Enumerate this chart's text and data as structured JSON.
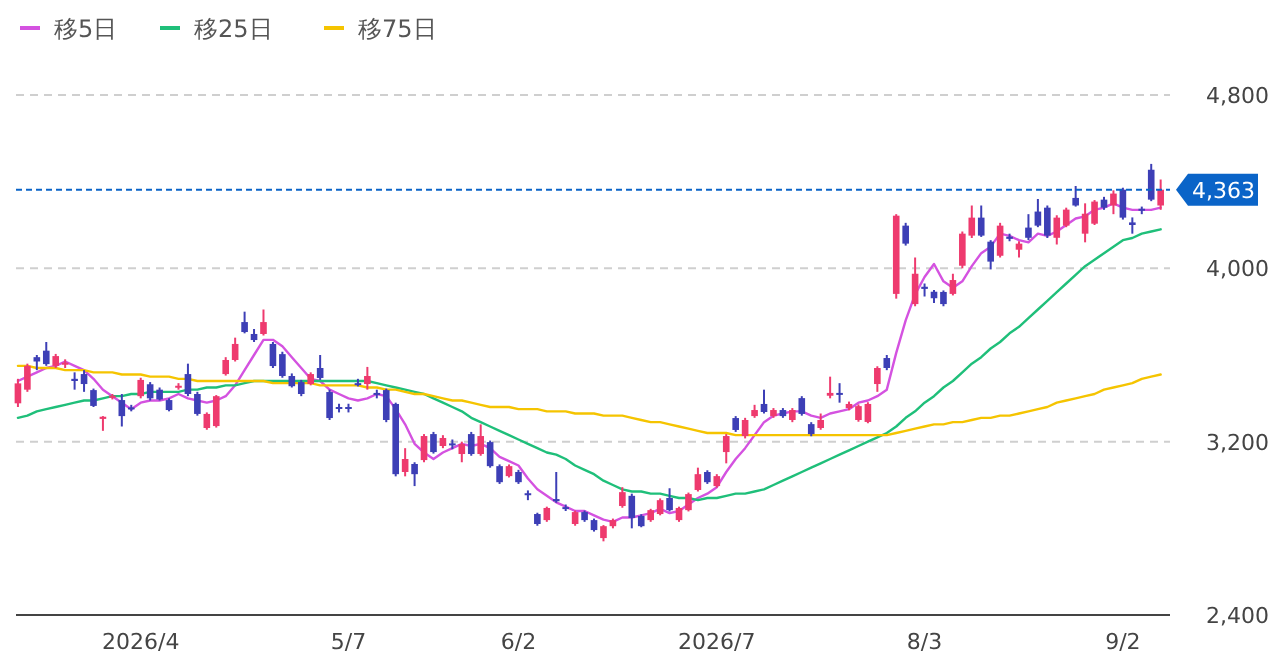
{
  "chart_data": {
    "type": "candlestick",
    "categories": [
      null,
      null,
      null,
      null,
      null,
      null,
      null,
      null,
      null,
      null,
      null,
      null,
      null,
      "2026/4",
      null,
      null,
      null,
      null,
      null,
      null,
      null,
      null,
      null,
      null,
      null,
      null,
      null,
      null,
      null,
      null,
      null,
      null,
      null,
      null,
      null,
      "5/7",
      null,
      null,
      null,
      null,
      null,
      null,
      null,
      null,
      null,
      null,
      null,
      null,
      null,
      null,
      null,
      null,
      null,
      "6/2",
      null,
      null,
      null,
      null,
      null,
      null,
      null,
      null,
      null,
      null,
      null,
      null,
      null,
      null,
      null,
      null,
      null,
      null,
      null,
      null,
      "2026/7",
      null,
      null,
      null,
      null,
      null,
      null,
      null,
      null,
      null,
      null,
      null,
      null,
      null,
      null,
      null,
      null,
      null,
      null,
      null,
      null,
      null,
      "8/3",
      null,
      null,
      null,
      null,
      null,
      null,
      null,
      null,
      null,
      null,
      null,
      null,
      null,
      null,
      null,
      null,
      null,
      null,
      null,
      null,
      "9/2",
      null,
      null,
      null,
      null
    ],
    "ohlc": [
      [
        3377,
        3490,
        3360,
        3469
      ],
      [
        3440,
        3560,
        3430,
        3550
      ],
      [
        3590,
        3600,
        3530,
        3570
      ],
      [
        3620,
        3660,
        3550,
        3558
      ],
      [
        3550,
        3605,
        3540,
        3595
      ],
      [
        3555,
        3580,
        3540,
        3565
      ],
      [
        3490,
        3520,
        3440,
        3480
      ],
      [
        3512,
        3530,
        3430,
        3466
      ],
      [
        3438,
        3445,
        3360,
        3365
      ],
      [
        3305,
        3318,
        3250,
        3315
      ],
      [
        3405,
        3420,
        3395,
        3412
      ],
      [
        3392,
        3420,
        3270,
        3318
      ],
      [
        3358,
        3370,
        3340,
        3352
      ],
      [
        3410,
        3495,
        3400,
        3485
      ],
      [
        3465,
        3475,
        3390,
        3400
      ],
      [
        3440,
        3450,
        3390,
        3395
      ],
      [
        3392,
        3400,
        3340,
        3346
      ],
      [
        3452,
        3470,
        3440,
        3458
      ],
      [
        3512,
        3560,
        3410,
        3420
      ],
      [
        3420,
        3430,
        3320,
        3328
      ],
      [
        3263,
        3335,
        3255,
        3328
      ],
      [
        3272,
        3415,
        3265,
        3410
      ],
      [
        3512,
        3590,
        3505,
        3577
      ],
      [
        3577,
        3680,
        3570,
        3651
      ],
      [
        3752,
        3800,
        3700,
        3706
      ],
      [
        3697,
        3720,
        3660,
        3669
      ],
      [
        3697,
        3810,
        3690,
        3752
      ],
      [
        3651,
        3660,
        3540,
        3549
      ],
      [
        3604,
        3615,
        3495,
        3503
      ],
      [
        3503,
        3515,
        3450,
        3456
      ],
      [
        3475,
        3485,
        3410,
        3420
      ],
      [
        3466,
        3520,
        3460,
        3512
      ],
      [
        3540,
        3600,
        3485,
        3494
      ],
      [
        3429,
        3440,
        3300,
        3309
      ],
      [
        3360,
        3375,
        3335,
        3352
      ],
      [
        3360,
        3375,
        3335,
        3352
      ],
      [
        3470,
        3490,
        3455,
        3463
      ],
      [
        3466,
        3545,
        3440,
        3503
      ],
      [
        3425,
        3440,
        3400,
        3418
      ],
      [
        3438,
        3445,
        3290,
        3300
      ],
      [
        3374,
        3380,
        3040,
        3050
      ],
      [
        3060,
        3170,
        3040,
        3120
      ],
      [
        3097,
        3105,
        2995,
        3050
      ],
      [
        3115,
        3235,
        3105,
        3226
      ],
      [
        3235,
        3245,
        3145,
        3152
      ],
      [
        3180,
        3230,
        3170,
        3217
      ],
      [
        3192,
        3210,
        3165,
        3186
      ],
      [
        3143,
        3200,
        3105,
        3189
      ],
      [
        3235,
        3245,
        3135,
        3143
      ],
      [
        3143,
        3280,
        3135,
        3226
      ],
      [
        3198,
        3205,
        3080,
        3087
      ],
      [
        3087,
        3095,
        3005,
        3013
      ],
      [
        3041,
        3095,
        3035,
        3087
      ],
      [
        3060,
        3070,
        3005,
        3013
      ],
      [
        2962,
        2975,
        2930,
        2955
      ],
      [
        2866,
        2872,
        2812,
        2820
      ],
      [
        2838,
        2900,
        2830,
        2894
      ],
      [
        2935,
        3060,
        2918,
        2925
      ],
      [
        2898,
        2910,
        2880,
        2890
      ],
      [
        2820,
        2882,
        2812,
        2875
      ],
      [
        2875,
        2882,
        2830,
        2838
      ],
      [
        2838,
        2845,
        2785,
        2792
      ],
      [
        2755,
        2815,
        2740,
        2810
      ],
      [
        2810,
        2845,
        2800,
        2838
      ],
      [
        2903,
        2990,
        2895,
        2967
      ],
      [
        2950,
        2960,
        2800,
        2848
      ],
      [
        2857,
        2865,
        2805,
        2810
      ],
      [
        2838,
        2890,
        2830,
        2884
      ],
      [
        2866,
        2938,
        2860,
        2930
      ],
      [
        2940,
        2985,
        2878,
        2884
      ],
      [
        2838,
        2900,
        2830,
        2894
      ],
      [
        2884,
        2965,
        2878,
        2958
      ],
      [
        2977,
        3080,
        2970,
        3050
      ],
      [
        3060,
        3068,
        3005,
        3013
      ],
      [
        2995,
        3050,
        2988,
        3041
      ],
      [
        3152,
        3235,
        3100,
        3226
      ],
      [
        3309,
        3318,
        3245,
        3254
      ],
      [
        3226,
        3310,
        3215,
        3300
      ],
      [
        3318,
        3370,
        3310,
        3346
      ],
      [
        3374,
        3440,
        3330,
        3337
      ],
      [
        3318,
        3355,
        3310,
        3346
      ],
      [
        3346,
        3355,
        3310,
        3318
      ],
      [
        3300,
        3355,
        3290,
        3346
      ],
      [
        3401,
        3410,
        3320,
        3328
      ],
      [
        3281,
        3290,
        3225,
        3235
      ],
      [
        3263,
        3330,
        3255,
        3300
      ],
      [
        3412,
        3500,
        3400,
        3425
      ],
      [
        3425,
        3470,
        3380,
        3418
      ],
      [
        3355,
        3385,
        3345,
        3374
      ],
      [
        3300,
        3372,
        3292,
        3364
      ],
      [
        3291,
        3382,
        3285,
        3374
      ],
      [
        3466,
        3548,
        3430,
        3540
      ],
      [
        3586,
        3600,
        3530,
        3540
      ],
      [
        3882,
        4250,
        3860,
        4243
      ],
      [
        4197,
        4210,
        4105,
        4114
      ],
      [
        3835,
        4050,
        3825,
        3975
      ],
      [
        3915,
        3930,
        3870,
        3905
      ],
      [
        3892,
        3900,
        3840,
        3862
      ],
      [
        3891,
        3898,
        3825,
        3835
      ],
      [
        3882,
        3975,
        3875,
        3946
      ],
      [
        4012,
        4170,
        4000,
        4160
      ],
      [
        4151,
        4290,
        4140,
        4234
      ],
      [
        4234,
        4290,
        4145,
        4151
      ],
      [
        4123,
        4130,
        3995,
        4031
      ],
      [
        4058,
        4210,
        4050,
        4197
      ],
      [
        4146,
        4160,
        4125,
        4136
      ],
      [
        4086,
        4125,
        4050,
        4114
      ],
      [
        4188,
        4250,
        4130,
        4141
      ],
      [
        4262,
        4320,
        4190,
        4197
      ],
      [
        4280,
        4290,
        4140,
        4151
      ],
      [
        4141,
        4245,
        4110,
        4234
      ],
      [
        4197,
        4280,
        4190,
        4271
      ],
      [
        4325,
        4380,
        4285,
        4290
      ],
      [
        4160,
        4300,
        4120,
        4252
      ],
      [
        4206,
        4315,
        4200,
        4308
      ],
      [
        4317,
        4330,
        4270,
        4280
      ],
      [
        4290,
        4360,
        4250,
        4345
      ],
      [
        4363,
        4372,
        4225,
        4234
      ],
      [
        4212,
        4235,
        4160,
        4200
      ],
      [
        4275,
        4285,
        4250,
        4266
      ],
      [
        4455,
        4482,
        4310,
        4317
      ],
      [
        4290,
        4410,
        4270,
        4363
      ]
    ],
    "series": [
      {
        "name": "移5日",
        "type": "line",
        "color": "#d452e0",
        "values": [
          3480,
          3500,
          3520,
          3540,
          3550,
          3570,
          3550,
          3530,
          3490,
          3440,
          3410,
          3380,
          3350,
          3380,
          3390,
          3390,
          3400,
          3420,
          3400,
          3390,
          3380,
          3390,
          3410,
          3460,
          3530,
          3600,
          3670,
          3670,
          3640,
          3590,
          3540,
          3490,
          3480,
          3440,
          3420,
          3400,
          3390,
          3400,
          3420,
          3410,
          3350,
          3280,
          3190,
          3150,
          3120,
          3150,
          3170,
          3190,
          3180,
          3190,
          3170,
          3130,
          3110,
          3090,
          3030,
          2980,
          2950,
          2920,
          2900,
          2880,
          2880,
          2860,
          2840,
          2830,
          2850,
          2850,
          2860,
          2870,
          2890,
          2870,
          2880,
          2910,
          2940,
          2960,
          2990,
          3060,
          3120,
          3170,
          3230,
          3290,
          3320,
          3330,
          3340,
          3340,
          3320,
          3310,
          3330,
          3340,
          3350,
          3380,
          3390,
          3410,
          3440,
          3610,
          3760,
          3880,
          3960,
          4020,
          3940,
          3910,
          3940,
          4010,
          4070,
          4100,
          4160,
          4150,
          4130,
          4120,
          4160,
          4150,
          4170,
          4200,
          4230,
          4240,
          4270,
          4280,
          4300,
          4280,
          4270,
          4270,
          4270,
          4280
        ]
      },
      {
        "name": "移25日",
        "type": "line",
        "color": "#1fbf7a",
        "values": [
          3310,
          3320,
          3340,
          3350,
          3360,
          3370,
          3380,
          3390,
          3390,
          3400,
          3410,
          3410,
          3420,
          3420,
          3430,
          3430,
          3430,
          3430,
          3440,
          3440,
          3450,
          3450,
          3460,
          3460,
          3470,
          3480,
          3480,
          3480,
          3480,
          3480,
          3480,
          3480,
          3480,
          3480,
          3480,
          3480,
          3480,
          3480,
          3470,
          3460,
          3450,
          3440,
          3430,
          3420,
          3400,
          3380,
          3360,
          3340,
          3310,
          3290,
          3270,
          3250,
          3230,
          3210,
          3190,
          3170,
          3150,
          3140,
          3120,
          3090,
          3070,
          3050,
          3020,
          3000,
          2980,
          2970,
          2970,
          2960,
          2960,
          2950,
          2940,
          2940,
          2930,
          2940,
          2940,
          2950,
          2960,
          2960,
          2970,
          2980,
          3000,
          3020,
          3040,
          3060,
          3080,
          3100,
          3120,
          3140,
          3160,
          3180,
          3200,
          3220,
          3240,
          3270,
          3310,
          3340,
          3380,
          3410,
          3450,
          3480,
          3520,
          3560,
          3590,
          3630,
          3660,
          3700,
          3730,
          3770,
          3810,
          3850,
          3890,
          3930,
          3970,
          4010,
          4040,
          4070,
          4100,
          4130,
          4140,
          4160,
          4170,
          4180
        ]
      },
      {
        "name": "移75日",
        "type": "line",
        "color": "#f5c400",
        "values": [
          3550,
          3550,
          3540,
          3540,
          3540,
          3530,
          3530,
          3530,
          3520,
          3520,
          3520,
          3510,
          3510,
          3510,
          3500,
          3500,
          3500,
          3490,
          3490,
          3480,
          3480,
          3480,
          3480,
          3480,
          3480,
          3480,
          3480,
          3470,
          3470,
          3470,
          3470,
          3470,
          3460,
          3460,
          3460,
          3460,
          3460,
          3450,
          3450,
          3440,
          3440,
          3430,
          3420,
          3420,
          3410,
          3400,
          3390,
          3390,
          3380,
          3370,
          3360,
          3360,
          3360,
          3350,
          3350,
          3350,
          3340,
          3340,
          3340,
          3330,
          3330,
          3330,
          3320,
          3320,
          3320,
          3310,
          3300,
          3290,
          3290,
          3280,
          3270,
          3260,
          3250,
          3240,
          3240,
          3240,
          3230,
          3230,
          3230,
          3230,
          3230,
          3230,
          3230,
          3230,
          3230,
          3230,
          3230,
          3230,
          3230,
          3230,
          3230,
          3230,
          3230,
          3240,
          3250,
          3260,
          3270,
          3280,
          3280,
          3290,
          3290,
          3300,
          3310,
          3310,
          3320,
          3320,
          3330,
          3340,
          3350,
          3360,
          3380,
          3390,
          3400,
          3410,
          3420,
          3440,
          3450,
          3460,
          3470,
          3490,
          3500,
          3510
        ]
      }
    ],
    "ylim": [
      2400,
      4800
    ],
    "yticks": [
      {
        "value": 2400,
        "label": "2,400"
      },
      {
        "value": 3200,
        "label": "3,200"
      },
      {
        "value": 4000,
        "label": "4,000"
      },
      {
        "value": 4800,
        "label": "4,800"
      }
    ],
    "ref_lines": [
      {
        "axis": "y",
        "value": 4363,
        "label": "4,363",
        "color": "#0a64c8",
        "line_style": "dashed"
      }
    ],
    "grid": "y",
    "legend": "top left"
  }
}
